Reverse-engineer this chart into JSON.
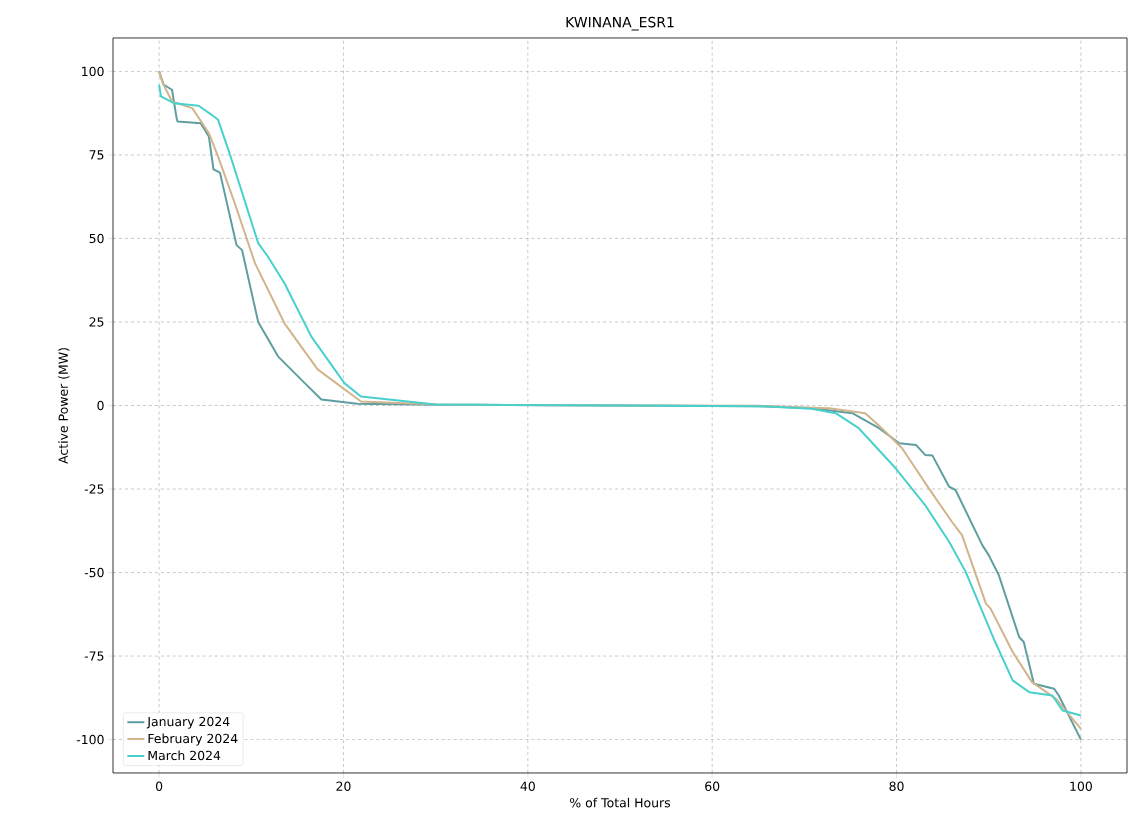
{
  "chart_data": {
    "type": "line",
    "title": "KWINANA_ESR1",
    "xlabel": "% of Total Hours",
    "ylabel": "Active Power (MW)",
    "xlim": [
      -5,
      105
    ],
    "ylim": [
      -110,
      110
    ],
    "xticks": [
      0,
      20,
      40,
      60,
      80,
      100
    ],
    "yticks": [
      -100,
      -75,
      -50,
      -25,
      0,
      25,
      50,
      75,
      100
    ],
    "grid": true,
    "legend": "bottom left",
    "series": [
      {
        "name": "January 2024",
        "color": "#5f9ea0",
        "x": [
          0,
          0.5,
          1.4,
          1.9,
          2.0,
          4.5,
          5.4,
          5.9,
          6.6,
          8.4,
          9.0,
          10.75,
          12.9,
          15.8,
          17.6,
          21.5,
          30,
          50,
          65,
          70.8,
          75.2,
          78.1,
          80.3,
          82.1,
          83.1,
          83.9,
          85.7,
          86.4,
          89.3,
          90,
          91.1,
          93.3,
          93.8,
          94.9,
          97.1,
          97.6,
          100
        ],
        "values": [
          100,
          96,
          94.5,
          86,
          85,
          84.5,
          80.5,
          70.7,
          69.7,
          48,
          46.5,
          25,
          14.7,
          6.7,
          1.8,
          0.5,
          0.2,
          0,
          -0.2,
          -0.8,
          -2.3,
          -6.8,
          -11.3,
          -11.8,
          -14.8,
          -15,
          -24.3,
          -25.3,
          -41.8,
          -44.8,
          -50.8,
          -69.3,
          -70.8,
          -83.3,
          -84.8,
          -86.8,
          -100
        ]
      },
      {
        "name": "February 2024",
        "color": "#d2b48c",
        "x": [
          0,
          0.4,
          1.4,
          3.6,
          5.4,
          6.4,
          8.2,
          10.4,
          13.6,
          17.2,
          21.9,
          30,
          50,
          65,
          72.7,
          76.6,
          78.4,
          80.6,
          83.5,
          86,
          87.1,
          89.7,
          90.2,
          92.6,
          94.7,
          97.3,
          100
        ],
        "values": [
          100,
          96.5,
          91,
          89,
          81.5,
          74.5,
          60.6,
          42.6,
          24.6,
          10.8,
          1.2,
          0.3,
          0,
          -0.1,
          -0.8,
          -2.3,
          -6.8,
          -12.8,
          -24.8,
          -34.8,
          -38.8,
          -59.3,
          -60.8,
          -73.8,
          -82.8,
          -87.8,
          -96.8
        ]
      },
      {
        "name": "March 2024",
        "color": "#48d1cc",
        "x": [
          0,
          0.2,
          1.6,
          4.3,
          5.7,
          6.4,
          7.7,
          10.75,
          11.8,
          13.6,
          16.5,
          20.1,
          21.9,
          30,
          50,
          65,
          70.8,
          73.4,
          75.9,
          79.9,
          83.1,
          85.7,
          87.5,
          90.7,
          92.6,
          94.4,
          96.9,
          98,
          100
        ],
        "values": [
          96,
          92.5,
          90.5,
          89.7,
          87,
          85.5,
          75,
          48.6,
          44.6,
          36.6,
          20.7,
          6.7,
          2.7,
          0.3,
          0,
          -0.2,
          -1.0,
          -2.3,
          -6.8,
          -18.8,
          -29.8,
          -40.8,
          -49.8,
          -70.8,
          -82.3,
          -85.8,
          -86.8,
          -91.3,
          -92.8
        ]
      }
    ]
  }
}
